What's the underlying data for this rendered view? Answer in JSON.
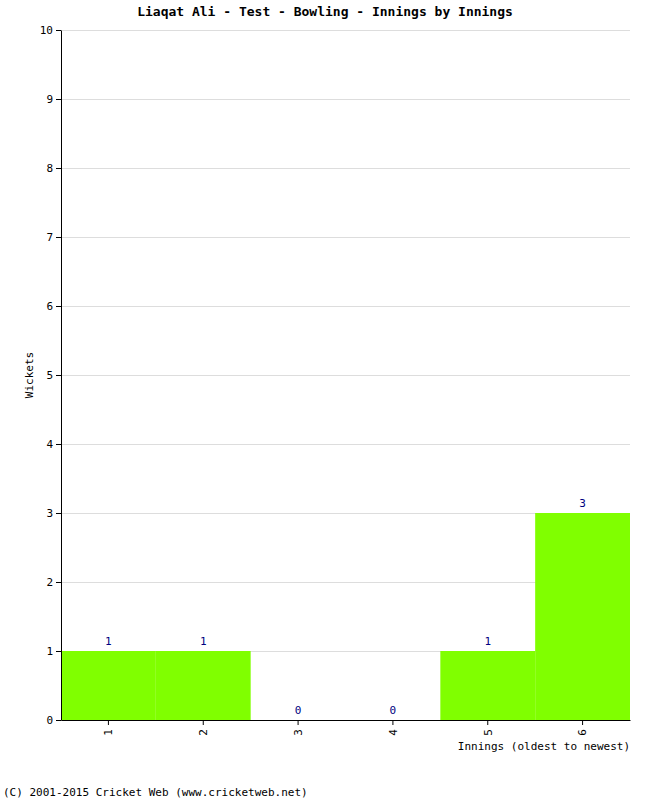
{
  "chart_data": {
    "type": "bar",
    "title": "Liaqat Ali - Test - Bowling - Innings by Innings",
    "x_label": "Innings (oldest to newest)",
    "y_label": "Wickets",
    "annotation": "(C) 2001-2015 Cricket Web (www.cricketweb.net)",
    "categories": [
      "1",
      "2",
      "3",
      "4",
      "5",
      "6"
    ],
    "values": [
      1,
      1,
      0,
      0,
      1,
      3
    ],
    "color": "#80ff00",
    "ylim": [
      0,
      10
    ],
    "yticks": [
      0,
      1,
      2,
      3,
      4,
      5,
      6,
      7,
      8,
      9,
      10
    ],
    "grid": true,
    "data_labels": true
  }
}
